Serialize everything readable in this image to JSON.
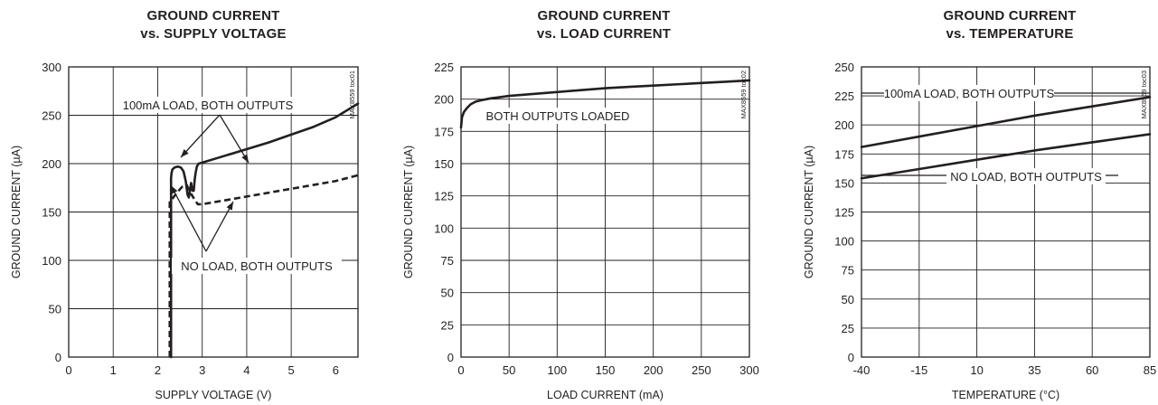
{
  "chart_data": [
    {
      "type": "line",
      "title": "GROUND CURRENT",
      "subtitle": "vs. SUPPLY VOLTAGE",
      "xlabel": "SUPPLY VOLTAGE (V)",
      "ylabel": "GROUND CURRENT (µA)",
      "xlim": [
        0,
        6.5
      ],
      "ylim": [
        0,
        300
      ],
      "xticks": [
        0,
        1,
        2,
        3,
        4,
        5,
        6
      ],
      "yticks": [
        0,
        50,
        100,
        150,
        200,
        250,
        300
      ],
      "xtick_labels": [
        "0",
        "1",
        "2",
        "3",
        "4",
        "5",
        "6"
      ],
      "ytick_labels": [
        "0",
        "50",
        "100",
        "150",
        "200",
        "250",
        "300"
      ],
      "grid": true,
      "id_label": "MAX8559 toc01",
      "series": [
        {
          "style": "solid",
          "x": [
            2.3,
            2.3,
            2.31,
            2.33,
            2.38,
            2.45,
            2.52,
            2.58,
            2.63,
            2.67,
            2.7,
            2.73,
            2.75,
            2.78,
            2.81,
            2.83,
            2.85,
            2.88,
            2.92,
            3.0,
            3.5,
            4.0,
            4.5,
            5.0,
            5.5,
            6.0,
            6.5
          ],
          "y": [
            0,
            185,
            190,
            194,
            196,
            197,
            196,
            192,
            182,
            168,
            165,
            174,
            180,
            172,
            172,
            183,
            190,
            197,
            200,
            201,
            208,
            215,
            222,
            230,
            238,
            248,
            262
          ]
        },
        {
          "style": "dashed",
          "x": [
            2.27,
            2.27,
            2.35,
            2.45,
            2.55,
            2.65,
            2.72,
            2.8,
            2.9,
            3.0,
            3.5,
            4.0,
            4.5,
            5.0,
            5.5,
            6.0,
            6.5
          ],
          "y": [
            0,
            160,
            165,
            171,
            176,
            178,
            171,
            165,
            158,
            158,
            162,
            166,
            170,
            174,
            178,
            182,
            188
          ]
        }
      ],
      "annotations": [
        {
          "text": "100mA LOAD, BOTH OUTPUTS",
          "x": 3.55,
          "y": 252
        },
        {
          "text": "NO LOAD, BOTH OUTPUTS",
          "x": 3.75,
          "y": 99
        }
      ]
    },
    {
      "type": "line",
      "title": "GROUND CURRENT",
      "subtitle": "vs. LOAD CURRENT",
      "xlabel": "LOAD CURRENT (mA)",
      "ylabel": "GROUND CURRENT (µA)",
      "xlim": [
        0,
        300
      ],
      "ylim": [
        0,
        225
      ],
      "xticks": [
        0,
        50,
        100,
        150,
        200,
        250,
        300
      ],
      "yticks": [
        0,
        25,
        50,
        75,
        100,
        125,
        150,
        175,
        200,
        225
      ],
      "xtick_labels": [
        "0",
        "50",
        "100",
        "150",
        "200",
        "250",
        "300"
      ],
      "ytick_labels": [
        "0",
        "25",
        "50",
        "75",
        "100",
        "125",
        "150",
        "175",
        "200",
        "225"
      ],
      "grid": true,
      "id_label": "MAX8559 toc02",
      "series": [
        {
          "style": "solid",
          "x": [
            0,
            1,
            3,
            6,
            10,
            15,
            20,
            30,
            40,
            50,
            75,
            100,
            125,
            150,
            175,
            200,
            225,
            250,
            275,
            300
          ],
          "y": [
            178,
            186,
            190,
            193,
            196,
            198,
            199,
            200.5,
            201.5,
            202.5,
            204,
            205.5,
            207,
            208.5,
            209.5,
            210.5,
            211.5,
            212.5,
            213.5,
            214.5
          ]
        }
      ],
      "annotations": [
        {
          "text": "BOTH OUTPUTS LOADED",
          "x": 85,
          "y": 190
        }
      ]
    },
    {
      "type": "line",
      "title": "GROUND CURRENT",
      "subtitle": "vs. TEMPERATURE",
      "xlabel": "TEMPERATURE (°C)",
      "ylabel": "GROUND CURRENT (µA)",
      "xlim": [
        -40,
        85
      ],
      "ylim": [
        0,
        250
      ],
      "xticks": [
        -40,
        -15,
        10,
        35,
        60,
        85
      ],
      "yticks": [
        0,
        25,
        50,
        75,
        100,
        125,
        150,
        175,
        200,
        225,
        250
      ],
      "xtick_labels": [
        "-40",
        "-15",
        "10",
        "35",
        "60",
        "85"
      ],
      "ytick_labels": [
        "0",
        "25",
        "50",
        "75",
        "100",
        "125",
        "150",
        "175",
        "200",
        "225",
        "250"
      ],
      "grid": true,
      "id_label": "MAX8559 toc03",
      "series": [
        {
          "style": "solid",
          "x": [
            -40,
            -15,
            10,
            35,
            60,
            85
          ],
          "y": [
            181,
            190,
            199,
            208,
            216,
            224
          ]
        },
        {
          "style": "solid",
          "x": [
            -40,
            -15,
            10,
            35,
            60,
            85
          ],
          "y": [
            154,
            162,
            170,
            178,
            185,
            192
          ]
        }
      ],
      "annotations": [
        {
          "text": "100mA LOAD, BOTH OUTPUTS",
          "x": 10,
          "y": 224
        },
        {
          "text": "NO LOAD, BOTH OUTPUTS",
          "x": 40,
          "y": 150
        }
      ]
    }
  ]
}
